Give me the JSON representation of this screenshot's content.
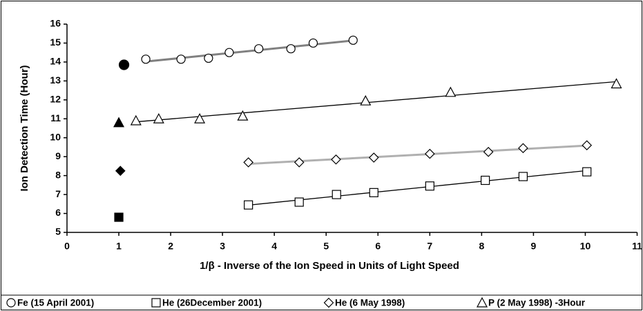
{
  "chart_data": {
    "type": "scatter",
    "x_label": "1/β - Inverse of the Ion Speed in Units of Light Speed",
    "y_label": "Ion Detection Time (Hour)",
    "xlim": [
      0,
      11
    ],
    "ylim": [
      5,
      16
    ],
    "xticks": [
      0,
      1,
      2,
      3,
      4,
      5,
      6,
      7,
      8,
      9,
      10,
      11
    ],
    "yticks": [
      5,
      6,
      7,
      8,
      9,
      10,
      11,
      12,
      13,
      14,
      15,
      16
    ],
    "series": [
      {
        "name": "Fe (15 April 2001)",
        "marker": "circle",
        "color": "#000000",
        "fit_color": "#808080",
        "x": [
          1.52,
          2.2,
          2.73,
          3.13,
          3.7,
          4.32,
          4.75,
          5.52
        ],
        "values": [
          14.15,
          14.15,
          14.2,
          14.5,
          14.7,
          14.7,
          15.0,
          15.15
        ],
        "filled": {
          "x": 1.1,
          "y": 13.85
        }
      },
      {
        "name": "He (26December 2001)",
        "marker": "square",
        "color": "#000000",
        "fit_color": "#000000",
        "x": [
          3.5,
          4.48,
          5.2,
          5.92,
          7.0,
          8.07,
          8.8,
          10.03
        ],
        "values": [
          6.45,
          6.6,
          7.0,
          7.1,
          7.45,
          7.75,
          7.95,
          8.2
        ],
        "filled": {
          "x": 1.0,
          "y": 5.8
        }
      },
      {
        "name": "He (6 May 1998)",
        "marker": "diamond",
        "color": "#000000",
        "fit_color": "#b0b0b0",
        "x": [
          3.5,
          4.48,
          5.19,
          5.92,
          7.0,
          8.13,
          8.8,
          10.03
        ],
        "values": [
          8.7,
          8.7,
          8.85,
          8.95,
          9.15,
          9.25,
          9.45,
          9.6
        ],
        "filled": {
          "x": 1.03,
          "y": 8.25
        }
      },
      {
        "name": "P (2 May 1998) -3Hour",
        "marker": "triangle",
        "color": "#000000",
        "fit_color": "#000000",
        "x": [
          1.33,
          1.77,
          2.56,
          3.39,
          5.76,
          7.4,
          10.6
        ],
        "values": [
          10.9,
          11.0,
          11.0,
          11.15,
          11.95,
          12.4,
          12.85
        ],
        "filled": {
          "x": 1.0,
          "y": 10.8
        }
      }
    ]
  }
}
